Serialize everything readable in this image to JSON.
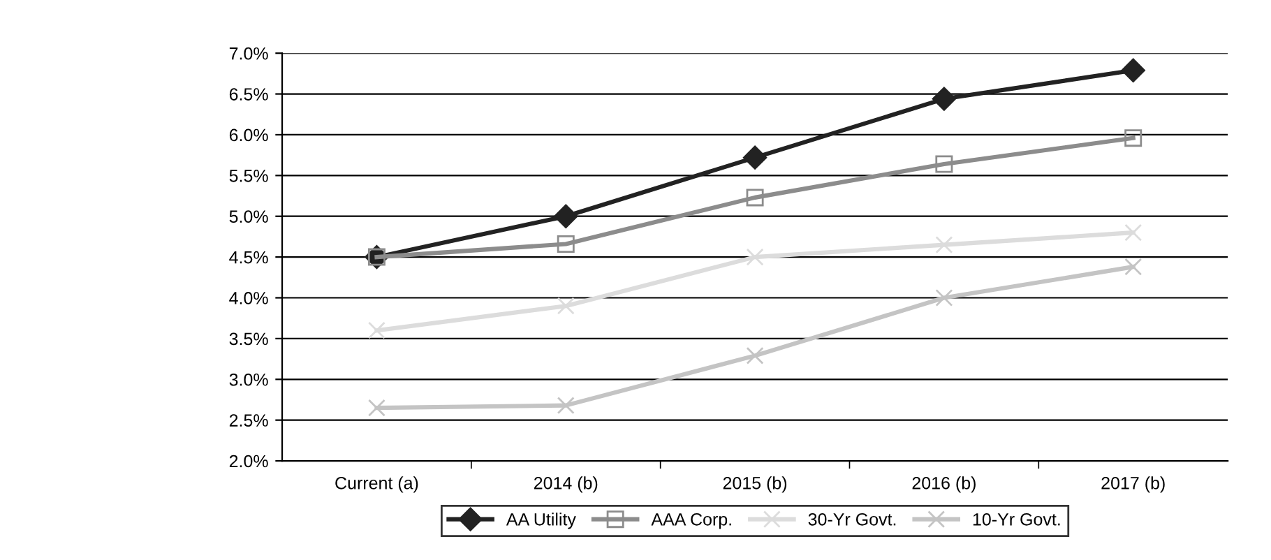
{
  "chart_data": {
    "type": "line",
    "categories": [
      "Current (a)",
      "2014 (b)",
      "2015 (b)",
      "2016 (b)",
      "2017 (b)"
    ],
    "series": [
      {
        "name": "AA Utility",
        "color": "#222222",
        "marker": "diamond",
        "values": [
          4.5,
          5.0,
          5.72,
          6.44,
          6.79
        ]
      },
      {
        "name": "AAA Corp.",
        "color": "#8c8c8c",
        "marker": "square",
        "values": [
          4.5,
          4.66,
          5.23,
          5.64,
          5.96
        ]
      },
      {
        "name": "30-Yr Govt.",
        "color": "#dcdcdc",
        "marker": "cross",
        "values": [
          3.6,
          3.9,
          4.5,
          4.65,
          4.8
        ]
      },
      {
        "name": "10-Yr Govt.",
        "color": "#c4c4c4",
        "marker": "cross",
        "values": [
          2.65,
          2.68,
          3.29,
          4.0,
          4.38
        ]
      }
    ],
    "ylim": [
      2.0,
      7.0
    ],
    "yticks": [
      {
        "value": 2.0,
        "label": "2.0%"
      },
      {
        "value": 2.5,
        "label": "2.5%"
      },
      {
        "value": 3.0,
        "label": "3.0%"
      },
      {
        "value": 3.5,
        "label": "3.5%"
      },
      {
        "value": 4.0,
        "label": "4.0%"
      },
      {
        "value": 4.5,
        "label": "4.5%"
      },
      {
        "value": 5.0,
        "label": "5.0%"
      },
      {
        "value": 5.5,
        "label": "5.5%"
      },
      {
        "value": 6.0,
        "label": "6.0%"
      },
      {
        "value": 6.5,
        "label": "6.5%"
      },
      {
        "value": 7.0,
        "label": "7.0%"
      }
    ],
    "grid": "y",
    "legend": "bottom",
    "line_style": "solid"
  }
}
